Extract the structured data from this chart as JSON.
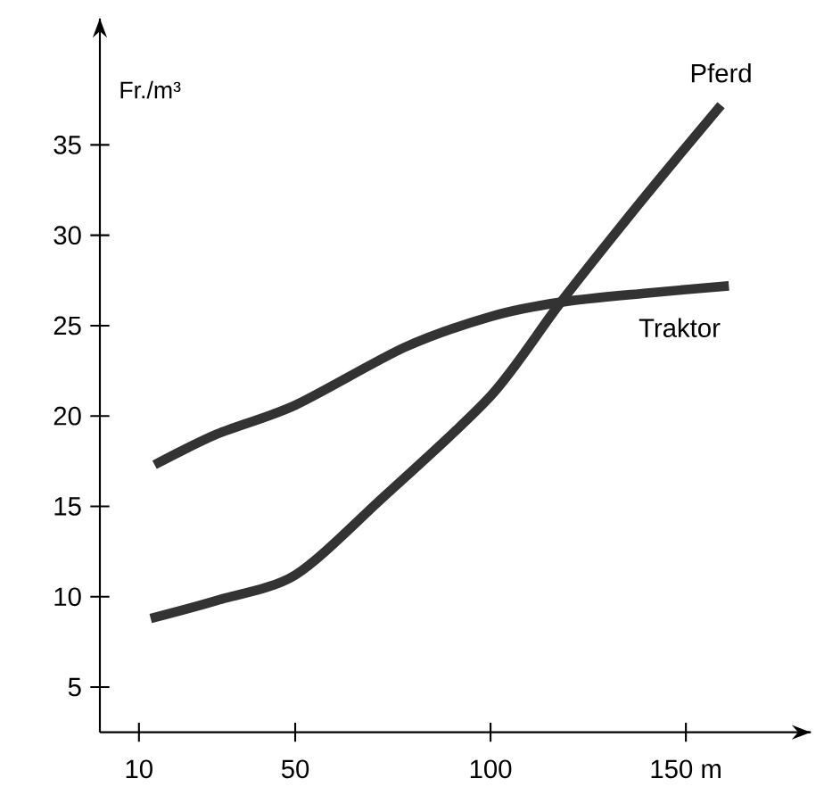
{
  "chart_data": {
    "type": "line",
    "ylabel": "Fr./m³",
    "xlim": [
      0,
      182
    ],
    "ylim": [
      2.5,
      42
    ],
    "xticks": [
      10,
      50,
      100,
      {
        "value": 150,
        "label": "150 m"
      }
    ],
    "yticks": [
      5,
      10,
      15,
      20,
      25,
      30,
      35
    ],
    "marker": "none",
    "line_style": "solid",
    "series": [
      {
        "name": "Pferd",
        "color": "#333333",
        "x": [
          13,
          30,
          50,
          72,
          100,
          118,
          139,
          159
        ],
        "values": [
          8.8,
          9.8,
          11.2,
          15.4,
          21.1,
          26.3,
          32.0,
          37.2
        ]
      },
      {
        "name": "Traktor",
        "color": "#333333",
        "x": [
          14,
          30,
          50,
          78,
          100,
          118,
          140,
          161
        ],
        "values": [
          17.3,
          19.0,
          20.6,
          23.8,
          25.5,
          26.3,
          26.8,
          27.2
        ]
      }
    ]
  }
}
